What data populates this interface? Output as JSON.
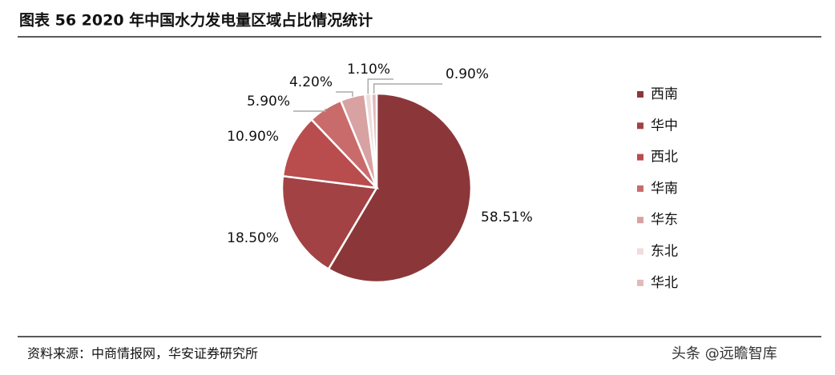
{
  "chart_data": {
    "type": "pie",
    "title": "图表 56 2020 年中国水力发电量区域占比情况统计",
    "categories": [
      "西南",
      "华中",
      "西北",
      "华南",
      "华东",
      "东北",
      "华北"
    ],
    "values": [
      58.51,
      18.5,
      10.9,
      5.9,
      4.2,
      1.1,
      0.9
    ],
    "value_labels": [
      "58.51%",
      "18.50%",
      "10.90%",
      "5.90%",
      "4.20%",
      "1.10%",
      "0.90%"
    ],
    "colors": [
      "#8b3739",
      "#a24244",
      "#b94c4d",
      "#c96b6b",
      "#d8a2a2",
      "#efdcdc",
      "#e3b9b9"
    ],
    "legend": "right",
    "source": "资料来源：中商情报网，华安证券研究所",
    "watermark": "头条 @远瞻智库"
  }
}
